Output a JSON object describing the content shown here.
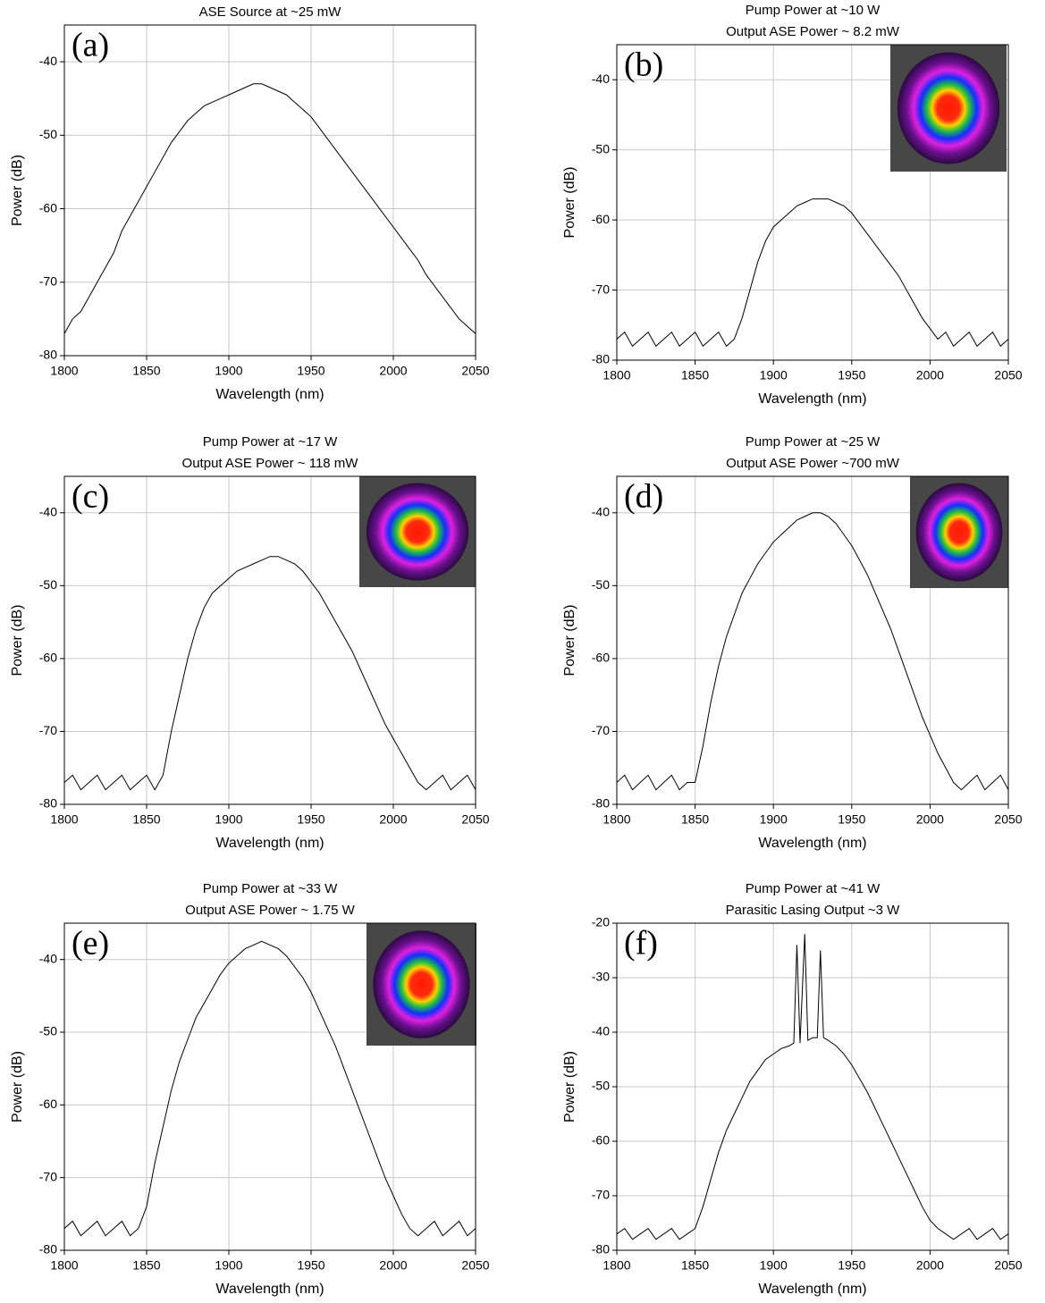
{
  "chart_data": [
    {
      "type": "line",
      "panel_label": "(a)",
      "title": "ASE Source at ~25 mW",
      "xlabel": "Wavelength (nm)",
      "ylabel": "Power (dB)",
      "color": "#000000",
      "grid": true,
      "inset_image": false,
      "x": [
        1800,
        1805,
        1810,
        1815,
        1820,
        1825,
        1830,
        1835,
        1840,
        1845,
        1850,
        1855,
        1860,
        1865,
        1870,
        1875,
        1880,
        1885,
        1890,
        1895,
        1900,
        1905,
        1910,
        1915,
        1920,
        1925,
        1930,
        1935,
        1940,
        1945,
        1950,
        1955,
        1960,
        1965,
        1970,
        1975,
        1980,
        1985,
        1990,
        1995,
        2000,
        2005,
        2010,
        2015,
        2020,
        2025,
        2030,
        2035,
        2040,
        2045,
        2050
      ],
      "values": [
        -77,
        -75,
        -74,
        -72,
        -70,
        -68,
        -66,
        -63,
        -61,
        -59,
        -57,
        -55,
        -53,
        -51,
        -49.5,
        -48,
        -47,
        -46,
        -45.5,
        -45,
        -44.5,
        -44,
        -43.5,
        -43,
        -43,
        -43.5,
        -44,
        -44.5,
        -45.5,
        -46.5,
        -47.5,
        -49,
        -50.5,
        -52,
        -53.5,
        -55,
        -56.5,
        -58,
        -59.5,
        -61,
        -62.5,
        -64,
        -65.5,
        -67,
        -69,
        -70.5,
        -72,
        -73.5,
        -75,
        -76,
        -77
      ],
      "xlim": [
        1800,
        2050
      ],
      "xticks": [
        1800,
        1850,
        1900,
        1950,
        2000,
        2050
      ],
      "ylim": [
        -80,
        -35
      ],
      "yticks": [
        -40,
        -50,
        -60,
        -70,
        -80
      ]
    },
    {
      "type": "line",
      "panel_label": "(b)",
      "title": "Pump Power at ~10 W",
      "subtitle": "Output ASE Power ~ 8.2 mW",
      "xlabel": "Wavelength (nm)",
      "ylabel": "Power (dB)",
      "color": "#000000",
      "grid": true,
      "inset_image": true,
      "x": [
        1800,
        1805,
        1810,
        1815,
        1820,
        1825,
        1830,
        1835,
        1840,
        1845,
        1850,
        1855,
        1860,
        1865,
        1870,
        1875,
        1880,
        1885,
        1890,
        1895,
        1900,
        1905,
        1910,
        1915,
        1920,
        1925,
        1930,
        1935,
        1940,
        1945,
        1950,
        1955,
        1960,
        1965,
        1970,
        1975,
        1980,
        1985,
        1990,
        1995,
        2000,
        2005,
        2010,
        2015,
        2020,
        2025,
        2030,
        2035,
        2040,
        2045,
        2050
      ],
      "values": [
        -77,
        -76,
        -78,
        -77,
        -76,
        -78,
        -77,
        -76,
        -78,
        -77,
        -76,
        -78,
        -77,
        -76,
        -78,
        -77,
        -74,
        -70,
        -66,
        -63,
        -61,
        -60,
        -59,
        -58,
        -57.5,
        -57,
        -57,
        -57,
        -57.5,
        -58,
        -59,
        -60.5,
        -62,
        -63.5,
        -65,
        -66.5,
        -68,
        -70,
        -72,
        -74,
        -75.5,
        -77,
        -76,
        -78,
        -77,
        -76,
        -78,
        -77,
        -76,
        -78,
        -77
      ],
      "xlim": [
        1800,
        2050
      ],
      "xticks": [
        1800,
        1850,
        1900,
        1950,
        2000,
        2050
      ],
      "ylim": [
        -80,
        -35
      ],
      "yticks": [
        -40,
        -50,
        -60,
        -70,
        -80
      ]
    },
    {
      "type": "line",
      "panel_label": "(c)",
      "title": "Pump Power at ~17 W",
      "subtitle": "Output ASE Power ~ 118 mW",
      "xlabel": "Wavelength (nm)",
      "ylabel": "Power (dB)",
      "color": "#000000",
      "grid": true,
      "inset_image": true,
      "x": [
        1800,
        1805,
        1810,
        1815,
        1820,
        1825,
        1830,
        1835,
        1840,
        1845,
        1850,
        1855,
        1860,
        1865,
        1870,
        1875,
        1880,
        1885,
        1890,
        1895,
        1900,
        1905,
        1910,
        1915,
        1920,
        1925,
        1930,
        1935,
        1940,
        1945,
        1950,
        1955,
        1960,
        1965,
        1970,
        1975,
        1980,
        1985,
        1990,
        1995,
        2000,
        2005,
        2010,
        2015,
        2020,
        2025,
        2030,
        2035,
        2040,
        2045,
        2050
      ],
      "values": [
        -77,
        -76,
        -78,
        -77,
        -76,
        -78,
        -77,
        -76,
        -78,
        -77,
        -76,
        -78,
        -76,
        -70,
        -65,
        -60,
        -56,
        -53,
        -51,
        -50,
        -49,
        -48,
        -47.5,
        -47,
        -46.5,
        -46,
        -46,
        -46.5,
        -47,
        -48,
        -49.5,
        -51,
        -53,
        -55,
        -57,
        -59,
        -61.5,
        -64,
        -66.5,
        -69,
        -71,
        -73,
        -75,
        -77,
        -78,
        -77,
        -76,
        -78,
        -77,
        -76,
        -78
      ],
      "xlim": [
        1800,
        2050
      ],
      "xticks": [
        1800,
        1850,
        1900,
        1950,
        2000,
        2050
      ],
      "ylim": [
        -80,
        -35
      ],
      "yticks": [
        -40,
        -50,
        -60,
        -70,
        -80
      ]
    },
    {
      "type": "line",
      "panel_label": "(d)",
      "title": "Pump Power at ~25 W",
      "subtitle": "Output ASE Power ~700 mW",
      "xlabel": "Wavelength (nm)",
      "ylabel": "Power (dB)",
      "color": "#000000",
      "grid": true,
      "inset_image": true,
      "x": [
        1800,
        1805,
        1810,
        1815,
        1820,
        1825,
        1830,
        1835,
        1840,
        1845,
        1850,
        1855,
        1860,
        1865,
        1870,
        1875,
        1880,
        1885,
        1890,
        1895,
        1900,
        1905,
        1910,
        1915,
        1920,
        1925,
        1930,
        1935,
        1940,
        1945,
        1950,
        1955,
        1960,
        1965,
        1970,
        1975,
        1980,
        1985,
        1990,
        1995,
        2000,
        2005,
        2010,
        2015,
        2020,
        2025,
        2030,
        2035,
        2040,
        2045,
        2050
      ],
      "values": [
        -77,
        -76,
        -78,
        -77,
        -76,
        -78,
        -77,
        -76,
        -78,
        -77,
        -77,
        -72,
        -66,
        -61,
        -57,
        -54,
        -51,
        -49,
        -47,
        -45.5,
        -44,
        -43,
        -42,
        -41,
        -40.5,
        -40,
        -40,
        -40.5,
        -41.5,
        -43,
        -44.5,
        -46.5,
        -48.5,
        -51,
        -53.5,
        -56,
        -59,
        -62,
        -65,
        -68,
        -70.5,
        -73,
        -75,
        -77,
        -78,
        -77,
        -76,
        -78,
        -77,
        -76,
        -78
      ],
      "xlim": [
        1800,
        2050
      ],
      "xticks": [
        1800,
        1850,
        1900,
        1950,
        2000,
        2050
      ],
      "ylim": [
        -80,
        -35
      ],
      "yticks": [
        -40,
        -50,
        -60,
        -70,
        -80
      ]
    },
    {
      "type": "line",
      "panel_label": "(e)",
      "title": "Pump Power at ~33 W",
      "subtitle": "Output ASE Power ~ 1.75 W",
      "xlabel": "Wavelength (nm)",
      "ylabel": "Power (dB)",
      "color": "#000000",
      "grid": true,
      "inset_image": true,
      "x": [
        1800,
        1805,
        1810,
        1815,
        1820,
        1825,
        1830,
        1835,
        1840,
        1845,
        1850,
        1855,
        1860,
        1865,
        1870,
        1875,
        1880,
        1885,
        1890,
        1895,
        1900,
        1905,
        1910,
        1915,
        1920,
        1925,
        1930,
        1935,
        1940,
        1945,
        1950,
        1955,
        1960,
        1965,
        1970,
        1975,
        1980,
        1985,
        1990,
        1995,
        2000,
        2005,
        2010,
        2015,
        2020,
        2025,
        2030,
        2035,
        2040,
        2045,
        2050
      ],
      "values": [
        -77,
        -76,
        -78,
        -77,
        -76,
        -78,
        -77,
        -76,
        -78,
        -77,
        -74,
        -68,
        -63,
        -58,
        -54,
        -51,
        -48,
        -46,
        -44,
        -42,
        -40.5,
        -39.5,
        -38.5,
        -38,
        -37.5,
        -38,
        -38.5,
        -39.5,
        -41,
        -42.5,
        -44.5,
        -47,
        -49.5,
        -52,
        -55,
        -58,
        -61,
        -64,
        -67,
        -70,
        -72.5,
        -75,
        -77,
        -78,
        -77,
        -76,
        -78,
        -77,
        -76,
        -78,
        -77
      ],
      "xlim": [
        1800,
        2050
      ],
      "xticks": [
        1800,
        1850,
        1900,
        1950,
        2000,
        2050
      ],
      "ylim": [
        -80,
        -35
      ],
      "yticks": [
        -40,
        -50,
        -60,
        -70,
        -80
      ]
    },
    {
      "type": "line",
      "panel_label": "(f)",
      "title": "Pump Power at ~41 W",
      "subtitle": "Parasitic Lasing Output ~3 W",
      "xlabel": "Wavelength (nm)",
      "ylabel": "Power (dB)",
      "color": "#000000",
      "grid": true,
      "inset_image": false,
      "x": [
        1800,
        1805,
        1810,
        1815,
        1820,
        1825,
        1830,
        1835,
        1840,
        1845,
        1850,
        1855,
        1860,
        1865,
        1870,
        1875,
        1880,
        1885,
        1890,
        1895,
        1900,
        1905,
        1910,
        1913,
        1915,
        1917,
        1920,
        1922,
        1925,
        1928,
        1930,
        1932,
        1935,
        1940,
        1945,
        1950,
        1955,
        1960,
        1965,
        1970,
        1975,
        1980,
        1985,
        1990,
        1995,
        2000,
        2005,
        2010,
        2015,
        2020,
        2025,
        2030,
        2035,
        2040,
        2045,
        2050
      ],
      "values": [
        -77,
        -76,
        -78,
        -77,
        -76,
        -78,
        -77,
        -76,
        -78,
        -77,
        -76,
        -72,
        -67,
        -62,
        -58,
        -55,
        -52,
        -49,
        -47,
        -45,
        -44,
        -43,
        -42.5,
        -42,
        -24,
        -42,
        -22,
        -41.5,
        -41,
        -41,
        -25,
        -41,
        -41.5,
        -42.5,
        -44,
        -46,
        -48.5,
        -51,
        -54,
        -57,
        -60,
        -63,
        -66,
        -69,
        -72,
        -74.5,
        -76,
        -77,
        -78,
        -77,
        -76,
        -78,
        -77,
        -76,
        -78,
        -77
      ],
      "xlim": [
        1800,
        2050
      ],
      "xticks": [
        1800,
        1850,
        1900,
        1950,
        2000,
        2050
      ],
      "ylim": [
        -80,
        -20
      ],
      "yticks": [
        -20,
        -30,
        -40,
        -50,
        -60,
        -70,
        -80
      ]
    }
  ]
}
